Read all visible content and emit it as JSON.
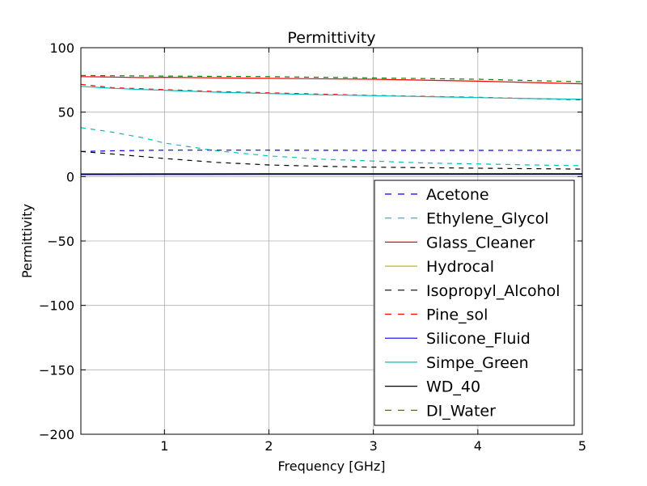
{
  "chart_data": {
    "type": "line",
    "title": "Permittivity",
    "xlabel": "Frequency [GHz]",
    "ylabel": "Permittivity",
    "xlim": [
      0.2,
      5
    ],
    "ylim": [
      -200,
      100
    ],
    "xticks": [
      1,
      2,
      3,
      4,
      5
    ],
    "yticks": [
      100,
      50,
      0,
      -50,
      -100,
      -150,
      -200
    ],
    "grid": true,
    "legend_position": "lower-right",
    "series": [
      {
        "name": "Acetone",
        "color": "#0000ff",
        "style": "dashed",
        "x": [
          0.2,
          0.5,
          1.0,
          1.5,
          2.0,
          3.0,
          4.0,
          5.0
        ],
        "y": [
          19.5,
          20.0,
          20.5,
          20.5,
          20.5,
          20.3,
          20.3,
          20.4
        ]
      },
      {
        "name": "Ethylene_Glycol",
        "color": "#00bfbf",
        "style": "dashed",
        "x": [
          0.2,
          0.5,
          0.8,
          1.0,
          1.5,
          2.0,
          2.5,
          3.0,
          3.5,
          4.0,
          4.5,
          5.0
        ],
        "y": [
          38,
          34.5,
          30,
          26,
          20,
          16,
          13.5,
          12,
          10.5,
          9.8,
          9,
          8.5
        ]
      },
      {
        "name": "Glass_Cleaner",
        "color": "#ff0000",
        "style": "solid",
        "x": [
          0.2,
          0.5,
          0.8,
          1.0,
          2.0,
          3.0,
          4.0,
          4.5,
          5.0
        ],
        "y": [
          77.5,
          77.2,
          76.8,
          77,
          76.2,
          75.5,
          74,
          73,
          72
        ]
      },
      {
        "name": "Hydrocal",
        "color": "#bfbf00",
        "style": "solid",
        "x": [
          0.2,
          1.0,
          2.0,
          3.0,
          4.0,
          5.0
        ],
        "y": [
          1.8,
          1.9,
          2.0,
          2.0,
          2.0,
          2.0
        ]
      },
      {
        "name": "Isopropyl_Alcohol",
        "color": "#000000",
        "style": "dashed",
        "x": [
          0.2,
          0.5,
          1.0,
          1.5,
          2.0,
          2.5,
          3.0,
          4.0,
          5.0
        ],
        "y": [
          19.5,
          17.5,
          14,
          11,
          9,
          8,
          7.3,
          6.5,
          5.8
        ]
      },
      {
        "name": "Pine_sol",
        "color": "#ff0000",
        "style": "dashed",
        "x": [
          0.2,
          0.5,
          1.0,
          1.5,
          2.0,
          3.0,
          4.0,
          4.5,
          5.0
        ],
        "y": [
          71.5,
          69,
          67.5,
          66,
          65,
          63,
          61.5,
          60.5,
          59.5
        ]
      },
      {
        "name": "Silicone_Fluid",
        "color": "#0000ff",
        "style": "solid",
        "x": [
          0.2,
          1.0,
          2.0,
          3.0,
          4.0,
          5.0
        ],
        "y": [
          1.5,
          1.6,
          1.7,
          1.7,
          1.7,
          1.7
        ]
      },
      {
        "name": "Simpe_Green",
        "color": "#00bfbf",
        "style": "solid",
        "x": [
          0.2,
          0.5,
          0.8,
          1.0,
          1.5,
          2.0,
          2.5,
          3.0,
          3.5,
          4.0,
          4.5,
          5.0
        ],
        "y": [
          70,
          68.5,
          67.5,
          67,
          65.5,
          64.5,
          63.5,
          62.8,
          62,
          61.3,
          60.5,
          60
        ]
      },
      {
        "name": "WD_40",
        "color": "#000000",
        "style": "solid",
        "x": [
          0.2,
          1.0,
          2.0,
          3.0,
          4.0,
          5.0
        ],
        "y": [
          2.0,
          2.1,
          2.2,
          2.2,
          2.2,
          2.2
        ]
      },
      {
        "name": "DI_Water",
        "color": "#008000",
        "style": "dashed",
        "x": [
          0.2,
          0.5,
          1.0,
          2.0,
          3.0,
          4.0,
          4.5,
          5.0
        ],
        "y": [
          78.5,
          78.2,
          78,
          77.5,
          76.5,
          75.5,
          74.5,
          73.5
        ]
      }
    ]
  }
}
